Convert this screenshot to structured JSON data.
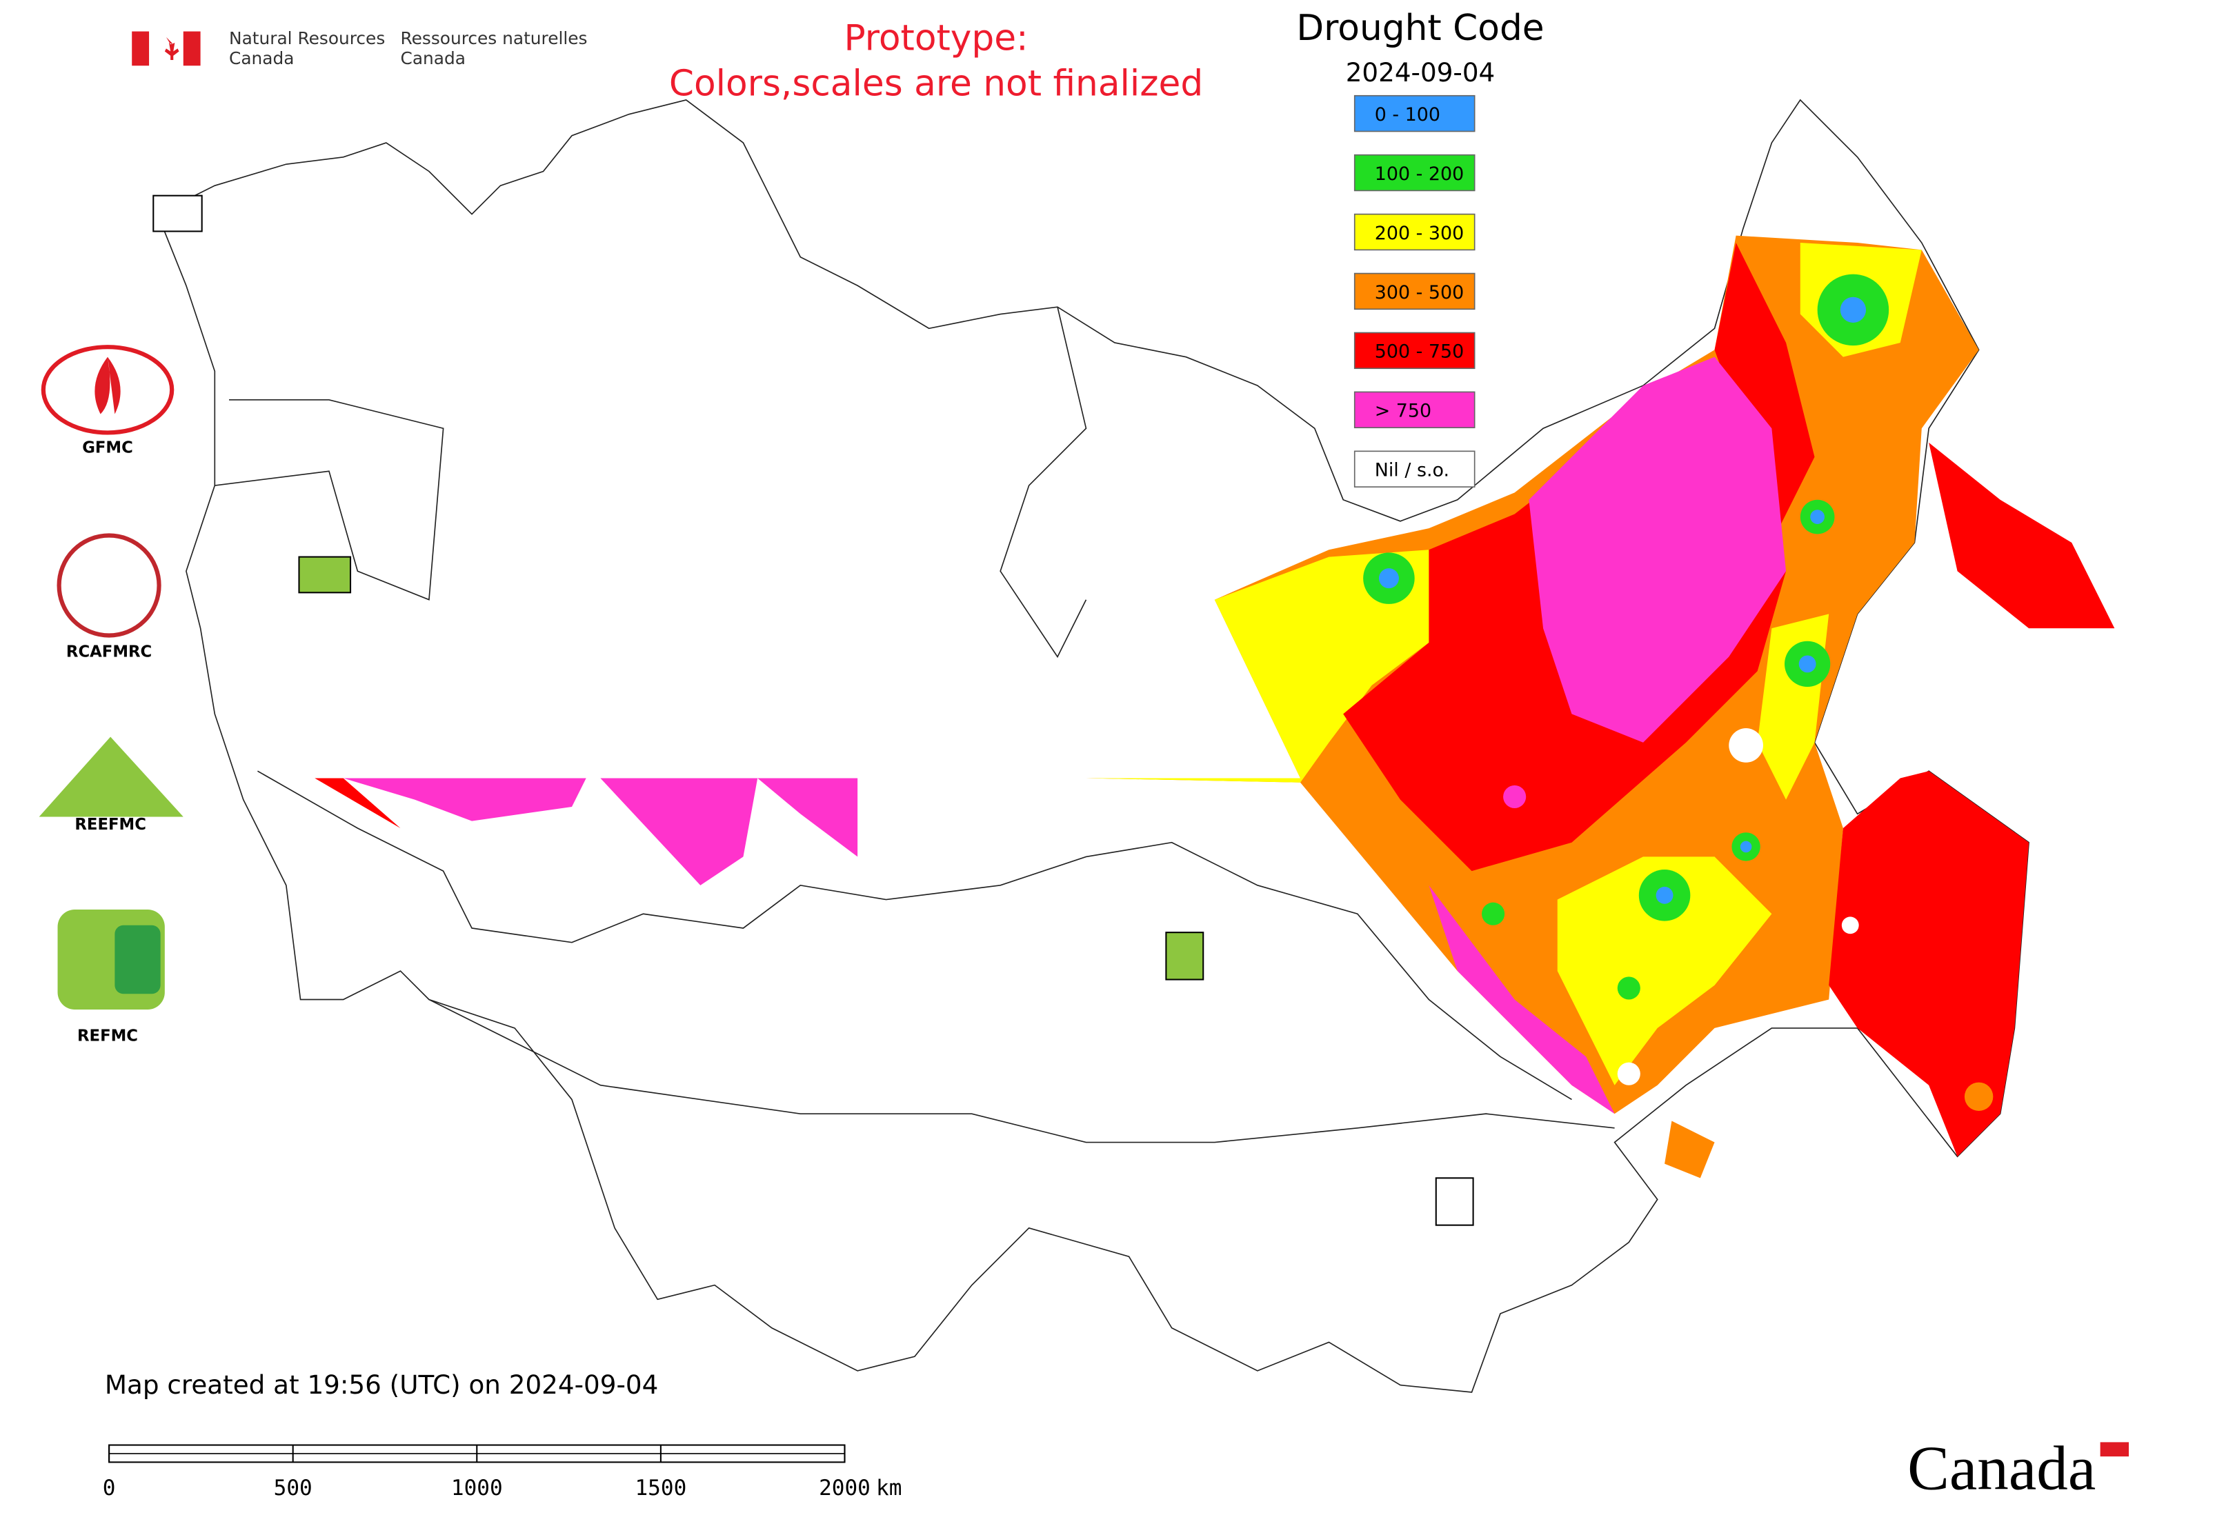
{
  "header": {
    "dept_en": [
      "Natural Resources",
      "Canada"
    ],
    "dept_fr": [
      "Ressources naturelles",
      "Canada"
    ]
  },
  "notice": [
    "Prototype:",
    "Colors,scales are not finalized"
  ],
  "legend": {
    "title": "Drought Code",
    "date": "2024-09-04",
    "items": [
      {
        "label": "0 - 100",
        "color": "#3399ff"
      },
      {
        "label": "100 - 200",
        "color": "#22dd22"
      },
      {
        "label": "200 - 300",
        "color": "#ffff00"
      },
      {
        "label": "300 - 500",
        "color": "#ff8800"
      },
      {
        "label": "500 - 750",
        "color": "#ff0000"
      },
      {
        "label": "> 750",
        "color": "#ff33cc"
      },
      {
        "label": "Nil / s.o.",
        "color": "#ffffff"
      }
    ]
  },
  "logos": [
    "GFMC",
    "RCAFMRC",
    "REEFMC",
    "REFMC"
  ],
  "footer": "Map created at 19:56 (UTC) on 2024-09-04",
  "scale_bar": {
    "ticks": [
      0,
      500,
      1000,
      1500,
      2000
    ],
    "unit": "km"
  },
  "wordmark": "Canada"
}
